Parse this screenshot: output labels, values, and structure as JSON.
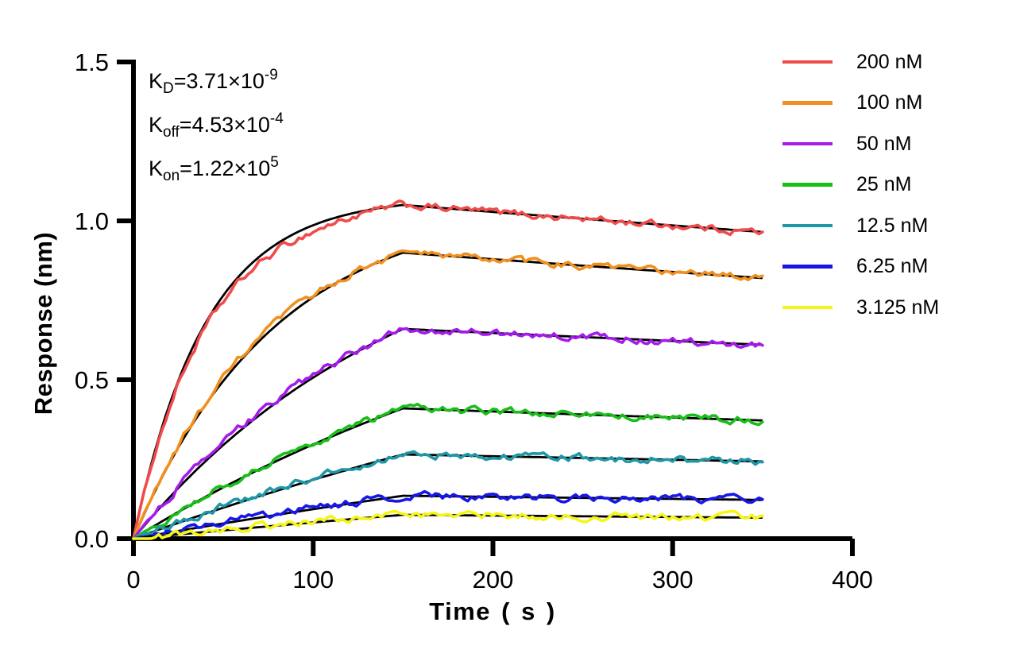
{
  "chart_data": {
    "type": "line",
    "title": "",
    "xlabel": "Time ( s )",
    "ylabel": "Response (nm)",
    "axes": {
      "x": {
        "label": "Time ( s )",
        "min": 0,
        "max": 400,
        "tick_values": [
          0,
          100,
          200,
          300,
          400
        ],
        "ticks": [
          "0",
          "100",
          "200",
          "300",
          "400"
        ]
      },
      "y": {
        "label": "Response (nm)",
        "min": 0,
        "max": 1.5,
        "tick_values": [
          0,
          0.5,
          1.0,
          1.5
        ],
        "ticks": [
          "0.0",
          "0.5",
          "1.0",
          "1.5"
        ]
      }
    },
    "grid": false,
    "legend_position": "top-right-outside",
    "phases": {
      "association_end_s": 150,
      "curve_end_s": 350
    },
    "fit": {
      "kon_per_M_s": 122000,
      "koff_per_s": 0.000453,
      "color": "#000000"
    },
    "kinetics": [
      {
        "symbol": "K",
        "subscript": "D",
        "value": "=3.71×10",
        "exponent": "-9"
      },
      {
        "symbol": "K",
        "subscript": "off",
        "value": "=4.53×10",
        "exponent": "-4"
      },
      {
        "symbol": "K",
        "subscript": "on",
        "value": "=1.22×10",
        "exponent": "5"
      }
    ],
    "series": [
      {
        "label": "200 nM",
        "conc_nM": 200,
        "color": "#F04B4B",
        "peak_nm": 1.05,
        "end_nm": 0.965,
        "data_fit_offset_nm": -0.022
      },
      {
        "label": "100 nM",
        "conc_nM": 100,
        "color": "#F18F1F",
        "peak_nm": 0.9,
        "end_nm": 0.82,
        "data_fit_offset_nm": 0.008
      },
      {
        "label": "50 nM",
        "conc_nM": 50,
        "color": "#A41BEA",
        "peak_nm": 0.66,
        "end_nm": 0.61,
        "data_fit_offset_nm": 0.008
      },
      {
        "label": "25 nM",
        "conc_nM": 25,
        "color": "#19BE19",
        "peak_nm": 0.41,
        "end_nm": 0.372,
        "data_fit_offset_nm": 0.005
      },
      {
        "label": "12.5 nM",
        "conc_nM": 12.5,
        "color": "#1F97A5",
        "peak_nm": 0.265,
        "end_nm": 0.243,
        "data_fit_offset_nm": 0.005
      },
      {
        "label": "6.25 nM",
        "conc_nM": 6.25,
        "color": "#1717E6",
        "peak_nm": 0.135,
        "end_nm": 0.122,
        "data_fit_offset_nm": 0.004
      },
      {
        "label": "3.125 nM",
        "conc_nM": 3.125,
        "color": "#F5F516",
        "peak_nm": 0.075,
        "end_nm": 0.066,
        "data_fit_offset_nm": 0.003
      }
    ]
  }
}
